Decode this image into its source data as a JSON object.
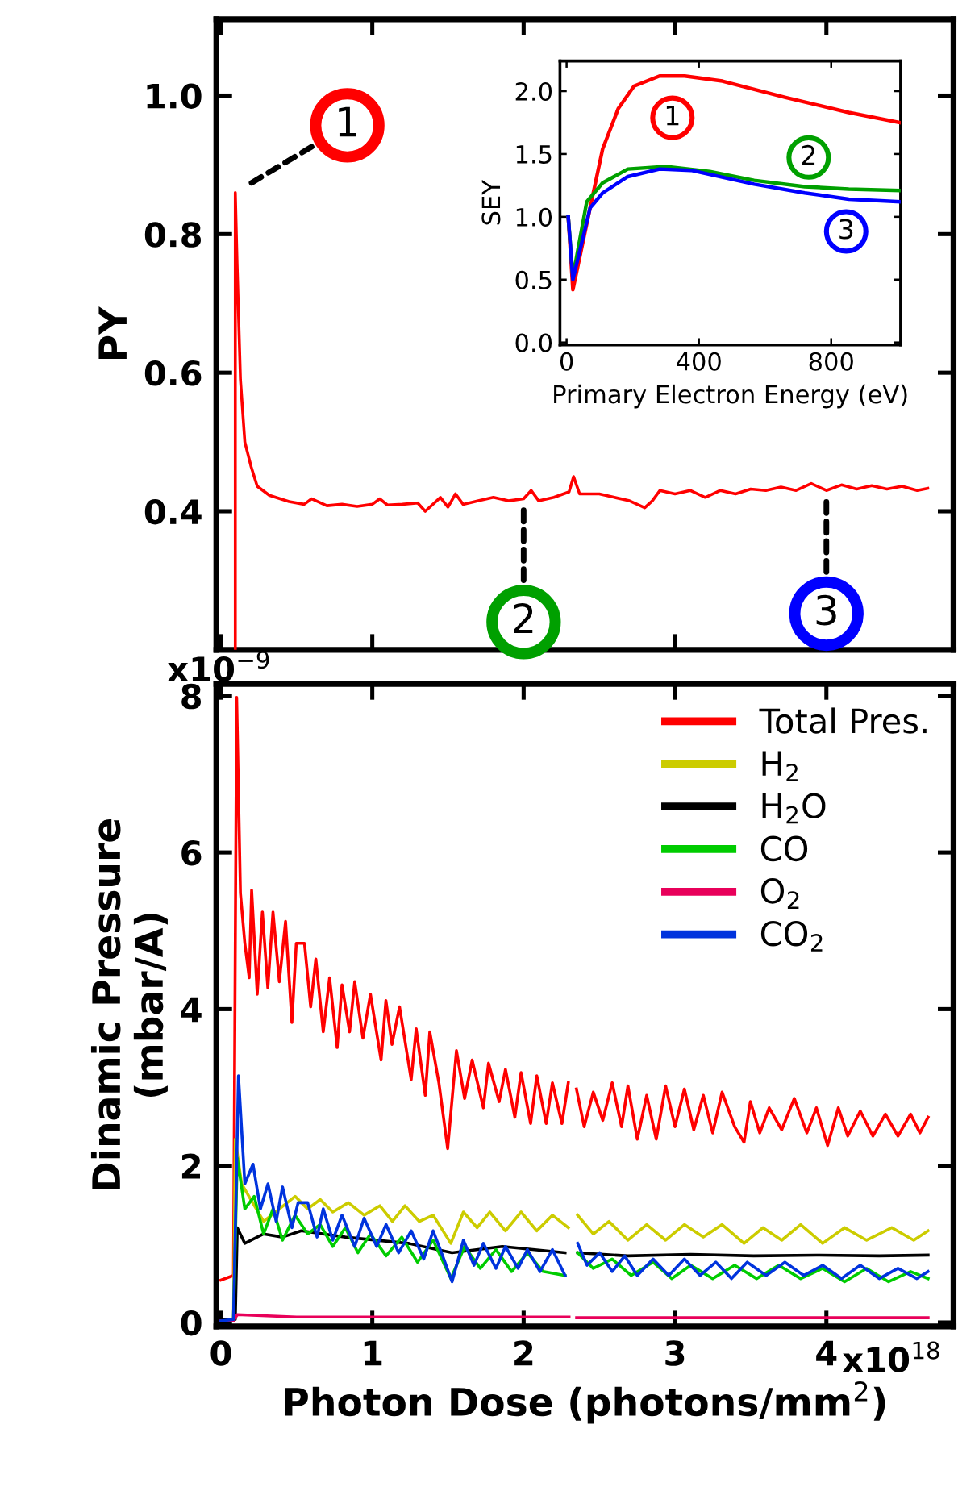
{
  "chart_data": [
    {
      "type": "line",
      "ylabel": "PY",
      "xlim": [
        -0.03,
        4.84
      ],
      "ylim": [
        0.2,
        1.11
      ],
      "xticks": [
        0,
        1,
        2,
        3,
        4
      ],
      "yticks": [
        {
          "value": 0.4,
          "label": "0.4"
        },
        {
          "value": 0.6,
          "label": "0.6"
        },
        {
          "value": 0.8,
          "label": "0.8"
        },
        {
          "value": 1.0,
          "label": "1.0"
        }
      ],
      "tick_labels": "y",
      "series": [
        {
          "color": "#ff0000",
          "x": [
            0.095,
            0.095,
            0.107,
            0.129,
            0.158,
            0.2,
            0.24,
            0.32,
            0.45,
            0.55,
            0.6,
            0.7,
            0.8,
            0.9,
            1.0,
            1.05,
            1.1,
            1.2,
            1.3,
            1.35,
            1.45,
            1.5,
            1.55,
            1.6,
            1.7,
            1.8,
            1.9,
            2.0,
            2.05,
            2.1,
            2.2,
            2.3,
            2.33,
            2.37,
            2.5,
            2.6,
            2.7,
            2.8,
            2.85,
            2.9,
            3.0,
            3.1,
            3.2,
            3.3,
            3.4,
            3.5,
            3.6,
            3.7,
            3.8,
            3.9,
            4.0,
            4.1,
            4.2,
            4.3,
            4.4,
            4.5,
            4.6,
            4.67
          ],
          "values": [
            0.2,
            0.86,
            0.755,
            0.59,
            0.5,
            0.464,
            0.436,
            0.423,
            0.414,
            0.41,
            0.418,
            0.408,
            0.41,
            0.407,
            0.41,
            0.418,
            0.409,
            0.41,
            0.412,
            0.4,
            0.42,
            0.406,
            0.425,
            0.41,
            0.415,
            0.42,
            0.415,
            0.418,
            0.43,
            0.415,
            0.42,
            0.428,
            0.45,
            0.425,
            0.425,
            0.42,
            0.415,
            0.405,
            0.415,
            0.43,
            0.425,
            0.43,
            0.42,
            0.43,
            0.425,
            0.432,
            0.43,
            0.435,
            0.43,
            0.44,
            0.43,
            0.438,
            0.432,
            0.437,
            0.432,
            0.436,
            0.43,
            0.433
          ]
        }
      ],
      "annotations": [
        {
          "text": "1",
          "x": 0.095,
          "y": 0.86
        },
        {
          "text": "2",
          "x": 2.0,
          "y": 0.418
        },
        {
          "text": "3",
          "x": 4.0,
          "y": 0.43
        }
      ]
    },
    {
      "type": "line",
      "xlabel": "Primary Electron Energy (eV)",
      "ylabel": "SEY",
      "xlim": [
        -20,
        1010
      ],
      "ylim": [
        -0.02,
        2.24
      ],
      "xticks": [
        0,
        400,
        800
      ],
      "yticks": [
        {
          "value": 0,
          "label": "0.0"
        },
        {
          "value": 0.5,
          "label": "0.5"
        },
        {
          "value": 1.0,
          "label": "1.0"
        },
        {
          "value": 1.5,
          "label": "1.5"
        },
        {
          "value": 2.0,
          "label": "2.0"
        }
      ],
      "series": [
        {
          "name": "1",
          "color": "#ff0000",
          "x": [
            5,
            19,
            71,
            109,
            156,
            204,
            281,
            357,
            471,
            662,
            853,
            1006
          ],
          "values": [
            1.0,
            0.42,
            1.07,
            1.54,
            1.86,
            2.04,
            2.12,
            2.12,
            2.08,
            1.95,
            1.83,
            1.75
          ]
        },
        {
          "name": "2",
          "color": "#00a000",
          "x": [
            5,
            19,
            61,
            109,
            185,
            300,
            433,
            567,
            720,
            853,
            1006
          ],
          "values": [
            1.0,
            0.52,
            1.12,
            1.27,
            1.38,
            1.4,
            1.36,
            1.29,
            1.24,
            1.22,
            1.21
          ]
        },
        {
          "name": "3",
          "color": "#0000ff",
          "x": [
            5,
            19,
            71,
            109,
            185,
            281,
            376,
            567,
            720,
            853,
            1006
          ],
          "values": [
            1.0,
            0.5,
            1.07,
            1.19,
            1.32,
            1.38,
            1.37,
            1.26,
            1.19,
            1.14,
            1.12
          ]
        }
      ]
    },
    {
      "type": "line",
      "xlabel": "Photon Dose (photons/mm$^{2}$)",
      "ylabel": "Dinamic Pressure\n(mbar/A)",
      "xlim": [
        -0.03,
        4.84
      ],
      "ylim": [
        -0.05,
        8.15
      ],
      "xticks": [
        0,
        1,
        2,
        3,
        4
      ],
      "yticks": [
        0,
        2,
        4,
        6,
        8
      ],
      "legend": "top right",
      "annotations": [
        "x10$^{−9}$",
        "x10$^{18}$"
      ],
      "series": [
        {
          "name": "Total Pres.",
          "color": "#ff0000",
          "x": [
            0,
            0.083,
            0.104,
            0.129,
            0.158,
            0.187,
            0.203,
            0.24,
            0.274,
            0.31,
            0.344,
            0.386,
            0.427,
            0.469,
            0.498,
            0.552,
            0.593,
            0.627,
            0.676,
            0.718,
            0.768,
            0.8,
            0.85,
            0.884,
            0.938,
            0.988,
            1.058,
            1.09,
            1.13,
            1.18,
            1.257,
            1.29,
            1.35,
            1.38,
            1.44,
            1.498,
            1.556,
            1.61,
            1.66,
            1.734,
            1.768,
            1.838,
            1.88,
            1.942,
            1.983,
            2.046,
            2.087,
            2.149,
            2.19,
            2.253,
            2.295,
            2.32,
            2.349,
            2.4,
            2.46,
            2.523,
            2.585,
            2.647,
            2.689,
            2.751,
            2.813,
            2.876,
            2.938,
            3.0,
            3.062,
            3.124,
            3.187,
            3.249,
            3.311,
            3.394,
            3.456,
            3.498,
            3.56,
            3.622,
            3.705,
            3.788,
            3.871,
            3.934,
            4.008,
            4.079,
            4.141,
            4.224,
            4.307,
            4.39,
            4.473,
            4.556,
            4.618,
            4.672
          ],
          "values": [
            0.54,
            0.6,
            7.98,
            5.48,
            4.84,
            4.4,
            5.52,
            4.19,
            5.24,
            4.27,
            5.24,
            4.35,
            5.12,
            3.83,
            4.84,
            4.84,
            4.03,
            4.64,
            3.71,
            4.4,
            3.51,
            4.31,
            3.71,
            4.35,
            3.63,
            4.19,
            3.35,
            4.11,
            3.55,
            4.03,
            3.1,
            3.75,
            2.9,
            3.71,
            3.06,
            2.22,
            3.47,
            2.86,
            3.35,
            2.74,
            3.31,
            2.82,
            3.23,
            2.62,
            3.19,
            2.54,
            3.15,
            2.54,
            3.06,
            2.54,
            3.06,
            null,
            2.98,
            2.5,
            2.94,
            2.58,
            3.06,
            2.5,
            3.02,
            2.34,
            2.9,
            2.34,
            3.02,
            2.5,
            2.98,
            2.46,
            2.9,
            2.42,
            2.94,
            2.5,
            2.3,
            2.82,
            2.42,
            2.74,
            2.46,
            2.86,
            2.42,
            2.74,
            2.26,
            2.74,
            2.38,
            2.7,
            2.38,
            2.66,
            2.38,
            2.66,
            2.42,
            2.62
          ]
        },
        {
          "name": "H$_{2}$",
          "color": "#cccc00",
          "x": [
            0.083,
            0.095,
            0.137,
            0.282,
            0.49,
            0.573,
            0.656,
            0.739,
            0.842,
            0.946,
            1.05,
            1.133,
            1.216,
            1.311,
            1.402,
            1.519,
            1.602,
            1.693,
            1.776,
            1.88,
            1.983,
            2.087,
            2.19,
            2.295,
            2.32,
            2.357,
            2.46,
            2.564,
            2.689,
            2.813,
            2.938,
            3.062,
            3.187,
            3.311,
            3.456,
            3.581,
            3.705,
            3.83,
            3.975,
            4.12,
            4.266,
            4.432,
            4.577,
            4.672
          ],
          "values": [
            0.04,
            2.34,
            1.77,
            1.29,
            1.61,
            1.45,
            1.57,
            1.41,
            1.53,
            1.37,
            1.49,
            1.29,
            1.49,
            1.29,
            1.37,
            1.01,
            1.41,
            1.21,
            1.41,
            1.17,
            1.41,
            1.17,
            1.37,
            1.21,
            null,
            1.37,
            1.13,
            1.29,
            1.05,
            1.25,
            1.05,
            1.25,
            1.09,
            1.25,
            1.01,
            1.21,
            1.05,
            1.25,
            1.01,
            1.21,
            1.05,
            1.21,
            1.05,
            1.17
          ]
        },
        {
          "name": "H$_{2}$O",
          "color": "#000000",
          "x": [
            0,
            0.095,
            0.108,
            0.158,
            0.282,
            0.407,
            0.531,
            0.822,
            1.237,
            1.527,
            1.859,
            2.274,
            2.32,
            2.357,
            2.689,
            3.104,
            3.519,
            3.934,
            4.349,
            4.672
          ],
          "values": [
            0.04,
            0.04,
            1.21,
            1.01,
            1.13,
            1.09,
            1.17,
            1.09,
            1.01,
            0.89,
            0.97,
            0.89,
            null,
            0.89,
            0.85,
            0.87,
            0.85,
            0.86,
            0.85,
            0.86
          ]
        },
        {
          "name": "CO",
          "color": "#00cc00",
          "x": [
            0.083,
            0.108,
            0.158,
            0.22,
            0.282,
            0.344,
            0.407,
            0.49,
            0.573,
            0.656,
            0.739,
            0.822,
            0.905,
            0.988,
            1.091,
            1.195,
            1.299,
            1.402,
            1.519,
            1.61,
            1.714,
            1.817,
            1.921,
            2.025,
            2.129,
            2.274,
            2.32,
            2.357,
            2.46,
            2.585,
            2.71,
            2.855,
            2.979,
            3.104,
            3.249,
            3.394,
            3.539,
            3.685,
            3.83,
            3.975,
            4.12,
            4.266,
            4.411,
            4.556,
            4.672
          ],
          "values": [
            0.04,
            2.1,
            1.45,
            1.61,
            1.13,
            1.45,
            1.05,
            1.37,
            1.13,
            1.25,
            0.97,
            1.21,
            0.89,
            1.13,
            0.85,
            1.09,
            0.77,
            1.05,
            0.56,
            0.97,
            0.69,
            0.93,
            0.65,
            0.89,
            0.65,
            0.6,
            null,
            0.89,
            0.69,
            0.81,
            0.6,
            0.77,
            0.56,
            0.73,
            0.56,
            0.73,
            0.56,
            0.73,
            0.56,
            0.69,
            0.52,
            0.69,
            0.52,
            0.65,
            0.56
          ]
        },
        {
          "name": "O$_{2}$",
          "color": "#e8005a",
          "x": [
            0,
            0.083,
            0.108,
            0.5,
            1.0,
            1.5,
            2.0,
            2.3,
            2.32,
            2.35,
            3.0,
            3.5,
            4.0,
            4.672
          ],
          "values": [
            0.02,
            0.02,
            0.1,
            0.07,
            0.07,
            0.07,
            0.07,
            0.07,
            null,
            0.06,
            0.06,
            0.06,
            0.06,
            0.06
          ]
        },
        {
          "name": "CO$_{2}$",
          "color": "#0033dd",
          "x": [
            0,
            0.083,
            0.116,
            0.158,
            0.212,
            0.261,
            0.311,
            0.365,
            0.407,
            0.469,
            0.51,
            0.573,
            0.635,
            0.676,
            0.739,
            0.8,
            0.884,
            0.946,
            1.029,
            1.091,
            1.174,
            1.257,
            1.34,
            1.402,
            1.465,
            1.527,
            1.602,
            1.672,
            1.734,
            1.817,
            1.88,
            1.963,
            2.025,
            2.108,
            2.19,
            2.274,
            2.32,
            2.357,
            2.419,
            2.502,
            2.585,
            2.668,
            2.751,
            2.855,
            2.959,
            3.062,
            3.166,
            3.27,
            3.373,
            3.477,
            3.602,
            3.726,
            3.851,
            3.975,
            4.1,
            4.224,
            4.349,
            4.473,
            4.598,
            4.672
          ],
          "values": [
            0.02,
            0.04,
            3.15,
            1.77,
            2.02,
            1.45,
            1.77,
            1.29,
            1.73,
            1.21,
            1.53,
            1.53,
            1.09,
            1.45,
            1.05,
            1.37,
            0.97,
            1.33,
            0.97,
            1.25,
            0.89,
            1.17,
            0.81,
            1.17,
            0.85,
            0.52,
            1.05,
            0.73,
            1.01,
            0.69,
            0.97,
            0.69,
            0.93,
            0.65,
            0.93,
            0.6,
            null,
            1.01,
            0.73,
            0.89,
            0.65,
            0.85,
            0.6,
            0.81,
            0.6,
            0.81,
            0.6,
            0.77,
            0.56,
            0.77,
            0.6,
            0.77,
            0.6,
            0.73,
            0.56,
            0.73,
            0.56,
            0.69,
            0.56,
            0.65
          ]
        }
      ]
    }
  ]
}
